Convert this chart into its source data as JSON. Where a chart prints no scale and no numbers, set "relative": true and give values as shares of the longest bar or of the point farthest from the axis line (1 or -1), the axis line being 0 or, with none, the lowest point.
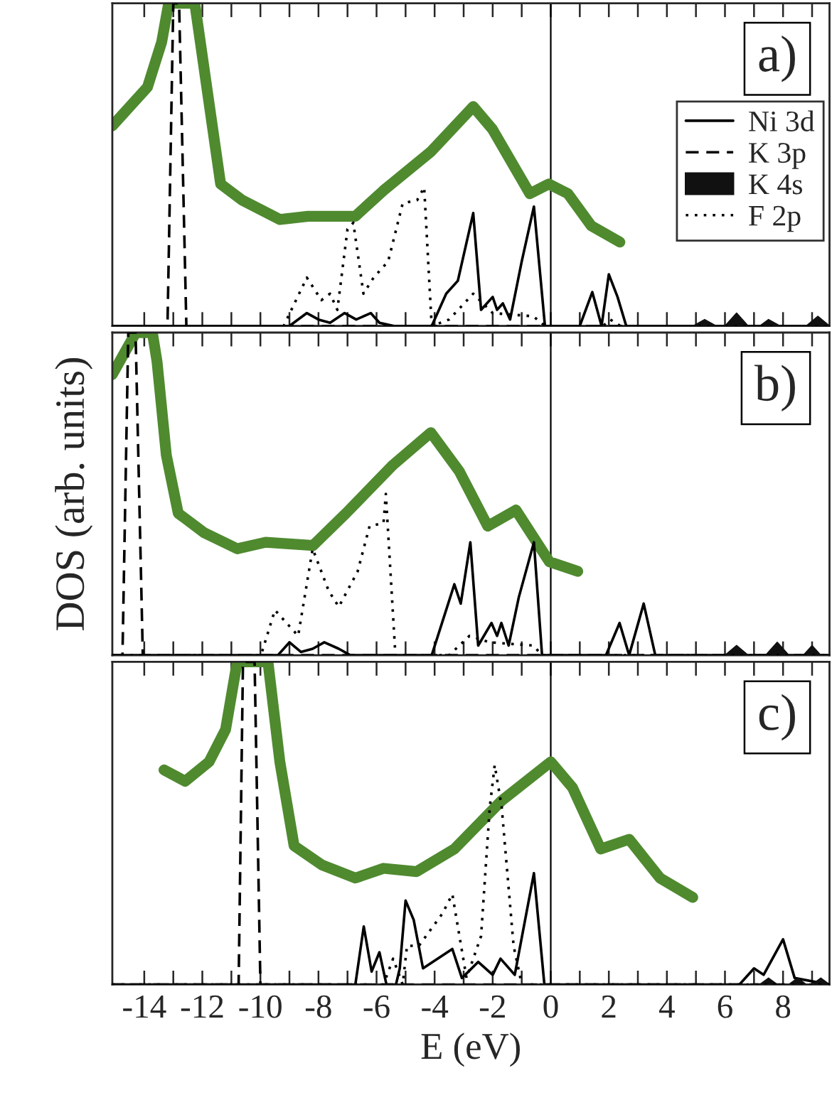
{
  "chart_data": [
    {
      "type": "line",
      "relative": true,
      "xlim": [
        -15.1,
        9.6
      ],
      "xticks": [
        -14,
        {
          "value": -13,
          "label": null
        },
        -12,
        {
          "value": -11,
          "label": null
        },
        -10,
        {
          "value": -9,
          "label": null
        },
        -8,
        {
          "value": -7,
          "label": null
        },
        -6,
        {
          "value": -5,
          "label": null
        },
        -4,
        {
          "value": -3,
          "label": null
        },
        -2,
        {
          "value": -1,
          "label": null
        },
        0,
        {
          "value": 1,
          "label": null
        },
        2,
        {
          "value": 3,
          "label": null
        },
        4,
        {
          "value": 5,
          "label": null
        },
        6,
        {
          "value": 7,
          "label": null
        },
        8,
        {
          "value": 9,
          "label": null
        }
      ],
      "tick_labels": false,
      "legend": "right",
      "annotations": [
        "a)"
      ],
      "ref_lines": [
        {
          "axis": "x",
          "value": 0,
          "color": "#000000"
        }
      ],
      "series": [
        {
          "color": "#4f8a2f",
          "line_style": "solid",
          "x": [
            -15.1,
            -13.89,
            -13.4,
            -13.16,
            -12.26,
            -11.37,
            -10.63,
            -9.33,
            -8.36,
            -6.73,
            -5.76,
            -4.13,
            -2.67,
            -2.01,
            -0.72,
            -0.07,
            0.59,
            1.4,
            2.38
          ],
          "values": [
            0.62,
            0.74,
            0.88,
            1,
            1,
            0.44,
            0.39,
            0.33,
            0.34,
            0.34,
            0.42,
            0.54,
            0.68,
            0.61,
            0.41,
            0.44,
            0.41,
            0.31,
            0.26
          ]
        },
        {
          "name": "Ni 3d",
          "color": "#000000",
          "line_style": "solid",
          "x": [
            -15.1,
            -9.0,
            -8.4,
            -8.0,
            -7.6,
            -7.1,
            -6.7,
            -6.2,
            -5.9,
            -5.4,
            -4.1,
            -3.6,
            -3.2,
            -2.67,
            -2.4,
            -2.0,
            -1.85,
            -1.65,
            -1.4,
            -1.0,
            -0.58,
            -0.2,
            1.0,
            1.43,
            1.75,
            2.0,
            2.3,
            2.6,
            9.6
          ],
          "values": [
            0,
            0,
            0.04,
            0.02,
            0.01,
            0.04,
            0.02,
            0.04,
            0.01,
            0,
            0,
            0.1,
            0.14,
            0.35,
            0.05,
            0.09,
            0.05,
            0.07,
            0.02,
            0.2,
            0.37,
            0,
            0,
            0.105,
            0,
            0.16,
            0.09,
            0,
            0
          ]
        },
        {
          "name": "K 3p",
          "color": "#000000",
          "line_style": "dashed",
          "x": [
            -15.1,
            -13.2,
            -13.0,
            -12.8,
            -12.55,
            9.6
          ],
          "values": [
            0,
            0,
            1,
            1,
            0,
            0
          ]
        },
        {
          "name": "K 4s",
          "type": "area",
          "color": "#111111",
          "x": [
            -15.1,
            4.9,
            5.3,
            5.7,
            6.0,
            6.4,
            6.8,
            7.2,
            7.5,
            7.9,
            8.8,
            9.2,
            9.6
          ],
          "values": [
            0,
            0,
            0.02,
            0,
            0,
            0.04,
            0,
            0,
            0.02,
            0,
            0,
            0.03,
            0
          ]
        },
        {
          "name": "F 2p",
          "color": "#000000",
          "line_style": "dotted",
          "x": [
            -15.1,
            -9.2,
            -8.4,
            -7.9,
            -7.6,
            -7.35,
            -7.0,
            -6.8,
            -6.45,
            -6.1,
            -5.6,
            -5.1,
            -4.6,
            -4.36,
            -4.1,
            -3.5,
            -2.67,
            -2.0,
            -0.6,
            -0.2,
            1.8,
            2.05,
            2.4,
            9.6
          ],
          "values": [
            0,
            0,
            0.15,
            0.08,
            0.1,
            0.05,
            0.3,
            0.32,
            0.1,
            0.15,
            0.2,
            0.38,
            0.39,
            0.43,
            0,
            0.02,
            0.1,
            0.04,
            0.03,
            0,
            0,
            0.02,
            0,
            0
          ]
        }
      ]
    },
    {
      "type": "line",
      "relative": true,
      "xlim": [
        -15.1,
        9.6
      ],
      "xticks": [
        -14,
        {
          "value": -13,
          "label": null
        },
        -12,
        {
          "value": -11,
          "label": null
        },
        -10,
        {
          "value": -9,
          "label": null
        },
        -8,
        {
          "value": -7,
          "label": null
        },
        -6,
        {
          "value": -5,
          "label": null
        },
        -4,
        {
          "value": -3,
          "label": null
        },
        -2,
        {
          "value": -1,
          "label": null
        },
        0,
        {
          "value": 1,
          "label": null
        },
        2,
        {
          "value": 3,
          "label": null
        },
        4,
        {
          "value": 5,
          "label": null
        },
        6,
        {
          "value": 7,
          "label": null
        },
        8,
        {
          "value": 9,
          "label": null
        }
      ],
      "tick_labels": false,
      "ylabel": "DOS (arb. units)",
      "annotations": [
        "b)"
      ],
      "ref_lines": [
        {
          "axis": "x",
          "value": 0,
          "color": "#000000"
        }
      ],
      "series": [
        {
          "color": "#4f8a2f",
          "line_style": "solid",
          "x": [
            -15.1,
            -14.29,
            -13.72,
            -13.56,
            -13.24,
            -12.83,
            -11.94,
            -10.8,
            -9.82,
            -8.19,
            -7.05,
            -5.43,
            -4.13,
            -3.15,
            -2.17,
            -1.2,
            -0.05,
            0.93
          ],
          "values": [
            0.87,
            1,
            1,
            0.91,
            0.62,
            0.44,
            0.38,
            0.33,
            0.35,
            0.34,
            0.44,
            0.59,
            0.69,
            0.57,
            0.4,
            0.45,
            0.29,
            0.26
          ]
        },
        {
          "color": "#000000",
          "line_style": "solid",
          "x": [
            -15.1,
            -9.4,
            -9.0,
            -8.6,
            -8.2,
            -7.8,
            -7.3,
            -6.9,
            -4.1,
            -3.32,
            -3.1,
            -2.77,
            -2.5,
            -2.04,
            -1.85,
            -1.7,
            -1.45,
            -1.1,
            -0.58,
            -0.3,
            1.9,
            2.37,
            2.7,
            3.2,
            3.6,
            9.6
          ],
          "values": [
            0,
            0,
            0.04,
            0.01,
            0.02,
            0.04,
            0.02,
            0,
            0,
            0.22,
            0.16,
            0.35,
            0.03,
            0.1,
            0.06,
            0.1,
            0.03,
            0.18,
            0.35,
            0,
            0,
            0.1,
            0,
            0.16,
            0,
            0
          ]
        },
        {
          "color": "#000000",
          "line_style": "dashed",
          "x": [
            -15.1,
            -14.75,
            -14.55,
            -14.3,
            -14.05,
            9.6
          ],
          "values": [
            0,
            0,
            1,
            1,
            0,
            0
          ]
        },
        {
          "type": "area",
          "color": "#111111",
          "x": [
            -15.1,
            6.0,
            6.4,
            6.8,
            7.4,
            7.8,
            8.2,
            8.7,
            9.0,
            9.3,
            9.6
          ],
          "values": [
            0,
            0,
            0.03,
            0,
            0,
            0.04,
            0,
            0,
            0.03,
            0,
            0
          ]
        },
        {
          "color": "#000000",
          "line_style": "dotted",
          "x": [
            -15.1,
            -9.98,
            -9.5,
            -8.7,
            -8.2,
            -7.65,
            -7.3,
            -6.65,
            -6.24,
            -5.76,
            -5.68,
            -5.35,
            -3.5,
            -2.8,
            -2.1,
            -0.6,
            -0.3,
            9.6
          ],
          "values": [
            0,
            0,
            0.14,
            0.06,
            0.33,
            0.2,
            0.15,
            0.26,
            0.4,
            0.41,
            0.5,
            0,
            0,
            0.06,
            0.04,
            0.03,
            0,
            0
          ]
        }
      ]
    },
    {
      "type": "line",
      "relative": true,
      "xlim": [
        -15.1,
        9.6
      ],
      "xticks": [
        -14,
        {
          "value": -13,
          "label": null
        },
        -12,
        {
          "value": -11,
          "label": null
        },
        -10,
        {
          "value": -9,
          "label": null
        },
        -8,
        {
          "value": -7,
          "label": null
        },
        -6,
        {
          "value": -5,
          "label": null
        },
        -4,
        {
          "value": -3,
          "label": null
        },
        -2,
        {
          "value": -1,
          "label": null
        },
        0,
        {
          "value": 1,
          "label": null
        },
        2,
        {
          "value": 3,
          "label": null
        },
        4,
        {
          "value": 5,
          "label": null
        },
        6,
        {
          "value": 7,
          "label": null
        },
        8,
        {
          "value": 9,
          "label": null
        }
      ],
      "tick_labels": "x",
      "xlabel": "E (eV)",
      "annotations": [
        "c)"
      ],
      "ref_lines": [
        {
          "axis": "x",
          "value": 0,
          "color": "#000000"
        }
      ],
      "series": [
        {
          "color": "#4f8a2f",
          "line_style": "solid",
          "x": [
            -13.32,
            -12.59,
            -11.77,
            -11.2,
            -10.8,
            -9.74,
            -9.33,
            -8.84,
            -7.87,
            -6.73,
            -5.76,
            -4.62,
            -3.32,
            -1.69,
            0,
            0.75,
            1.72,
            2.7,
            3.76,
            4.89
          ],
          "values": [
            0.665,
            0.63,
            0.69,
            0.79,
            1,
            1,
            0.69,
            0.43,
            0.37,
            0.33,
            0.36,
            0.35,
            0.42,
            0.57,
            0.69,
            0.61,
            0.42,
            0.45,
            0.33,
            0.27
          ]
        },
        {
          "color": "#000000",
          "line_style": "solid",
          "x": [
            -15.1,
            -6.73,
            -6.44,
            -6.17,
            -5.9,
            -5.66,
            -5.33,
            -5.2,
            -5.0,
            -4.72,
            -4.4,
            -3.39,
            -3.06,
            -2.5,
            -2.0,
            -1.73,
            -1.24,
            -0.58,
            -0.22,
            6.5,
            7.0,
            7.33,
            8.0,
            8.4,
            9.6
          ],
          "values": [
            0,
            0,
            0.18,
            0.04,
            0.1,
            0,
            0,
            0.05,
            0.26,
            0.2,
            0.05,
            0.11,
            0.02,
            0.07,
            0.03,
            0.08,
            0.03,
            0.345,
            0,
            0,
            0.05,
            0.03,
            0.14,
            0.02,
            0
          ]
        },
        {
          "color": "#000000",
          "line_style": "dashed",
          "x": [
            -15.1,
            -10.75,
            -10.6,
            -10.2,
            -10.0,
            9.6
          ],
          "values": [
            0,
            0,
            1,
            1,
            0,
            0
          ]
        },
        {
          "type": "area",
          "color": "#111111",
          "x": [
            -15.1,
            7.2,
            7.5,
            7.8,
            8.2,
            8.5,
            8.8,
            9.0,
            9.3,
            9.6
          ],
          "values": [
            0,
            0,
            0.02,
            0,
            0,
            0.02,
            0,
            0,
            0.02,
            0
          ]
        },
        {
          "color": "#000000",
          "line_style": "dotted",
          "x": [
            -15.1,
            -5.76,
            -5.43,
            -5.1,
            -4.95,
            -4.54,
            -3.73,
            -3.39,
            -2.9,
            -2.4,
            -2.1,
            -1.93,
            -1.69,
            -1.28,
            -1.0,
            9.6
          ],
          "values": [
            0,
            0,
            0.08,
            0,
            0.12,
            0.12,
            0.22,
            0.28,
            0.02,
            0.15,
            0.55,
            0.68,
            0.55,
            0.12,
            0,
            0
          ]
        }
      ]
    }
  ]
}
